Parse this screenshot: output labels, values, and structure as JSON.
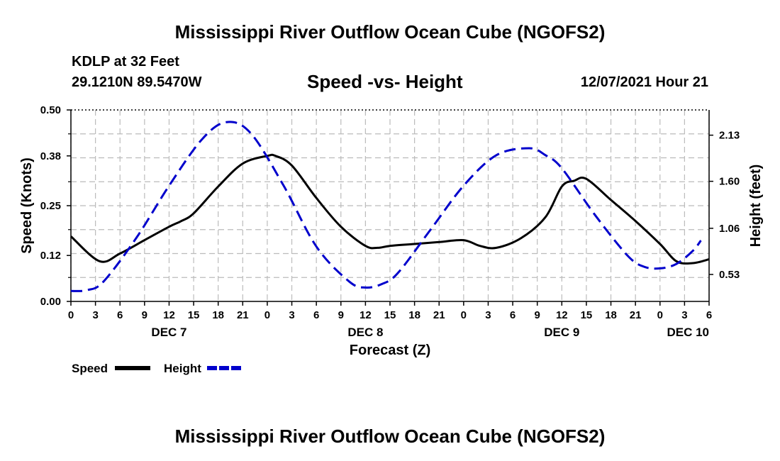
{
  "header": {
    "main_title": "Mississippi River Outflow Ocean Cube (NGOFS2)",
    "station": "KDLP at 32 Feet",
    "coordinates": "29.1210N  89.5470W",
    "datetime": "12/07/2021 Hour 21"
  },
  "footer": {
    "main_title": "Mississippi River Outflow Ocean Cube (NGOFS2)"
  },
  "chart_data": {
    "type": "line",
    "title": "Speed -vs- Height",
    "xlabel": "Forecast (Z)",
    "ylabel": "Speed (Knots)",
    "y2label": "Height (feet)",
    "ylim": [
      0,
      0.5
    ],
    "y2lim": [
      0.22,
      2.42
    ],
    "yticks": [
      "0.00",
      "0.12",
      "0.25",
      "0.38",
      "0.50"
    ],
    "y2ticks": [
      "0.53",
      "1.06",
      "1.60",
      "2.13"
    ],
    "xlim": [
      0,
      78
    ],
    "xtick_labels": [
      "0",
      "3",
      "6",
      "9",
      "12",
      "15",
      "18",
      "21",
      "0",
      "3",
      "6",
      "9",
      "12",
      "15",
      "18",
      "21",
      "0",
      "3",
      "6",
      "9",
      "12",
      "15",
      "18",
      "21",
      "0",
      "3",
      "6"
    ],
    "day_labels": [
      {
        "label": "DEC 7",
        "hour": 12
      },
      {
        "label": "DEC 8",
        "hour": 36
      },
      {
        "label": "DEC 9",
        "hour": 60
      },
      {
        "label": "DEC 10",
        "hour": 78
      }
    ],
    "grid": true,
    "legend_position": "bottom-left",
    "series": [
      {
        "name": "Speed",
        "axis": "left",
        "color": "#000000",
        "dash": "solid",
        "x": [
          0,
          3.5,
          6,
          9,
          12,
          13.5,
          15,
          18,
          21,
          24,
          25,
          27,
          30,
          33,
          36,
          37.5,
          39,
          42,
          45,
          48,
          50,
          52,
          55,
          58,
          60,
          61.5,
          63,
          66,
          69,
          72,
          74,
          76,
          78
        ],
        "y": [
          0.17,
          0.105,
          0.125,
          0.16,
          0.195,
          0.21,
          0.23,
          0.3,
          0.36,
          0.38,
          0.38,
          0.355,
          0.27,
          0.195,
          0.145,
          0.14,
          0.145,
          0.15,
          0.155,
          0.16,
          0.145,
          0.14,
          0.165,
          0.22,
          0.3,
          0.315,
          0.32,
          0.265,
          0.21,
          0.15,
          0.105,
          0.1,
          0.11
        ]
      },
      {
        "name": "Height",
        "axis": "right",
        "color": "#0000cc",
        "dash": "dashed",
        "x": [
          0,
          2,
          4,
          8,
          12,
          16,
          19,
          22,
          26,
          30,
          34,
          36,
          38,
          40,
          44,
          48,
          52,
          56,
          58,
          60,
          64,
          68,
          70,
          72,
          74,
          76,
          77
        ],
        "y": [
          0.34,
          0.35,
          0.45,
          0.95,
          1.55,
          2.08,
          2.28,
          2.15,
          1.55,
          0.85,
          0.45,
          0.38,
          0.42,
          0.55,
          1.05,
          1.55,
          1.9,
          1.98,
          1.9,
          1.75,
          1.22,
          0.75,
          0.62,
          0.6,
          0.65,
          0.8,
          0.92
        ]
      }
    ]
  }
}
